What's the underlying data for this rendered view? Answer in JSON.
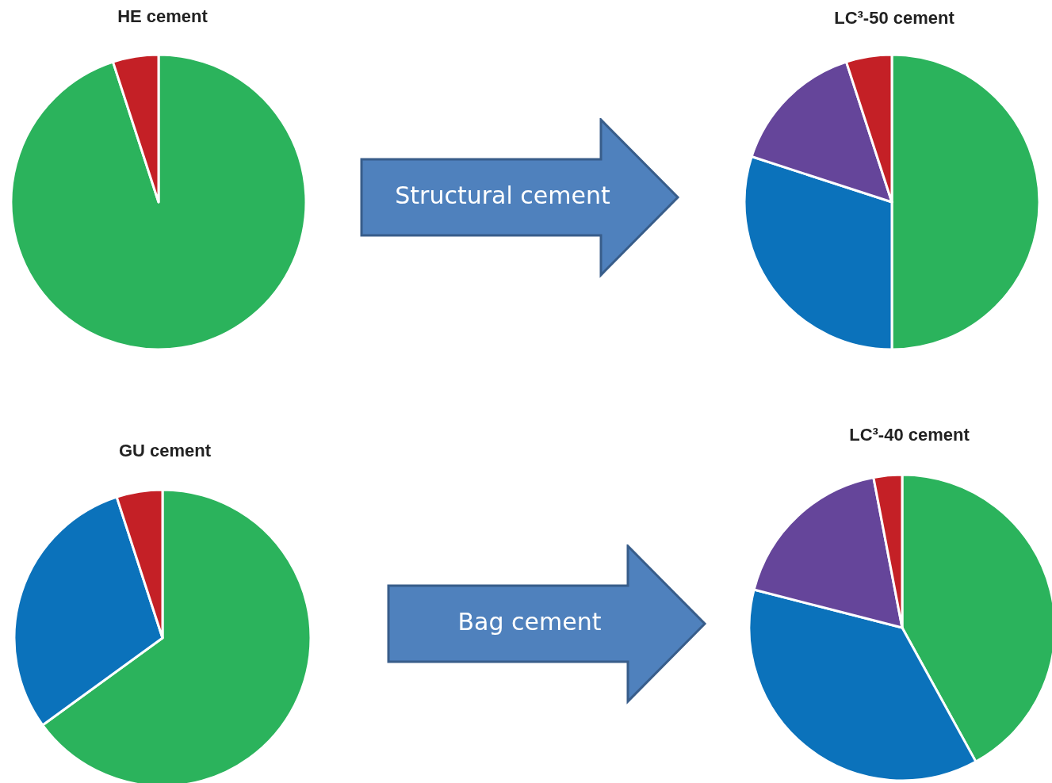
{
  "chart_data": [
    {
      "type": "pie",
      "title": "HE cement",
      "categories": [
        null,
        null
      ],
      "values": [
        95,
        5
      ],
      "colors": [
        "#2bb35c",
        "#c42026"
      ],
      "annotations": [
        "Structural cement"
      ]
    },
    {
      "type": "pie",
      "title": "LC³-50 cement",
      "categories": [
        null,
        null,
        null,
        null
      ],
      "values": [
        50,
        30,
        15,
        5
      ],
      "colors": [
        "#2bb35c",
        "#0b72bb",
        "#65459a",
        "#c42026"
      ]
    },
    {
      "type": "pie",
      "title": "GU cement",
      "categories": [
        null,
        null,
        null
      ],
      "values": [
        65,
        30,
        5
      ],
      "colors": [
        "#2bb35c",
        "#0b72bb",
        "#c42026"
      ],
      "annotations": [
        "Bag cement"
      ]
    },
    {
      "type": "pie",
      "title": "LC³-40 cement",
      "categories": [
        null,
        null,
        null,
        null
      ],
      "values": [
        42,
        37,
        18,
        3
      ],
      "colors": [
        "#2bb35c",
        "#0b72bb",
        "#65459a",
        "#c42026"
      ]
    }
  ]
}
